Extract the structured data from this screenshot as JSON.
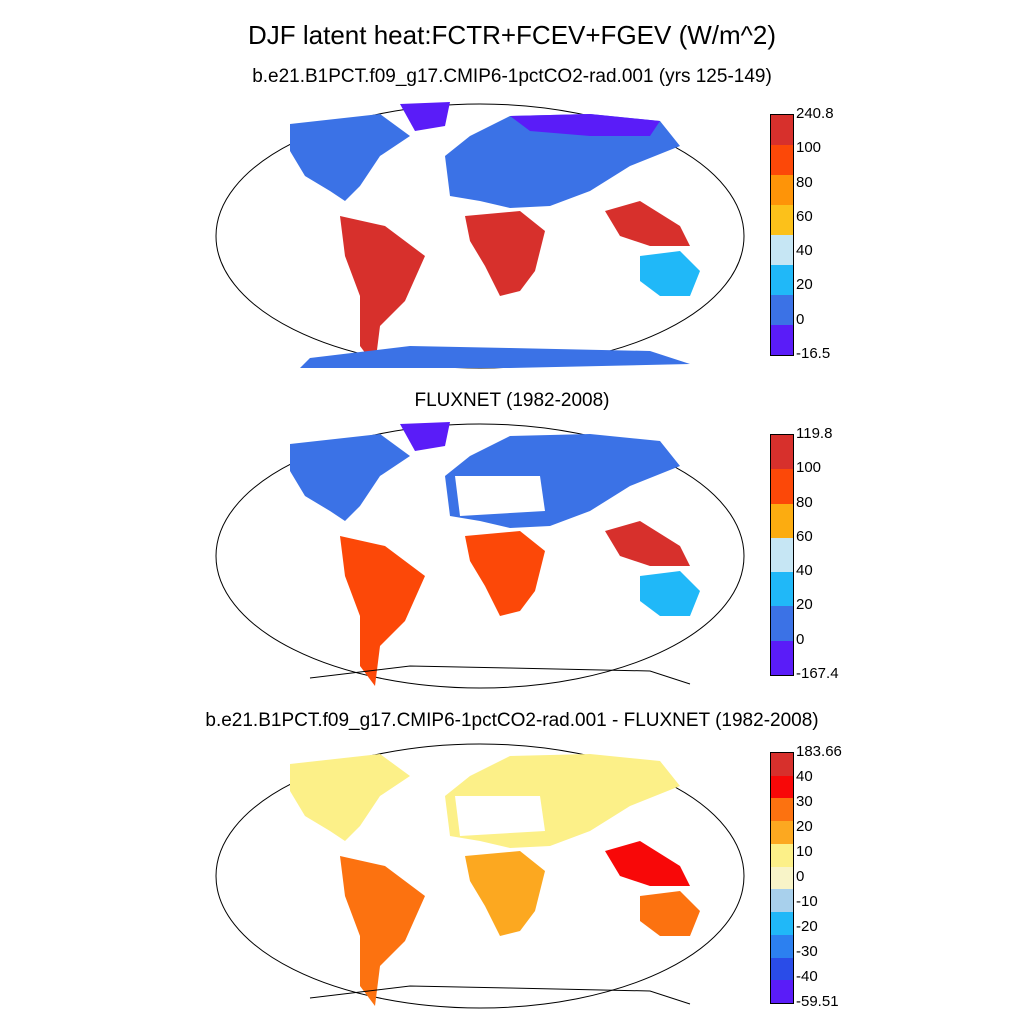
{
  "title": "DJF latent heat:FCTR+FCEV+FGEV (W/m^2)",
  "panels": [
    {
      "subtitle": "b.e21.B1PCT.f09_g17.CMIP6-1pctCO2-rad.001 (yrs 125-149)",
      "colorbar": {
        "labels": [
          "240.8",
          "100",
          "80",
          "60",
          "40",
          "20",
          "0",
          "-16.5"
        ],
        "colors": [
          "#d7302c",
          "#fc4808",
          "#fe9408",
          "#fcc11a",
          "#c6e6f4",
          "#20b8f8",
          "#3b72e6",
          "#5a1cf8"
        ]
      }
    },
    {
      "subtitle": "FLUXNET (1982-2008)",
      "colorbar": {
        "labels": [
          "119.8",
          "100",
          "80",
          "60",
          "40",
          "20",
          "0",
          "-167.4"
        ],
        "colors": [
          "#d7302c",
          "#fc4808",
          "#fcac10",
          "#c6e6f4",
          "#20b8f8",
          "#3b72e6",
          "#5a1cf8"
        ]
      }
    },
    {
      "subtitle": "b.e21.B1PCT.f09_g17.CMIP6-1pctCO2-rad.001 - FLUXNET (1982-2008)",
      "colorbar": {
        "labels": [
          "183.66",
          "40",
          "30",
          "20",
          "10",
          "0",
          "-10",
          "-20",
          "-30",
          "-40",
          "-59.51"
        ],
        "colors": [
          "#d7302c",
          "#f80808",
          "#fc7210",
          "#fca820",
          "#fcf088",
          "#f8f4c8",
          "#a8d0ec",
          "#20b8f8",
          "#2c80f0",
          "#2a4ce8",
          "#5a1cf8"
        ]
      }
    }
  ]
}
